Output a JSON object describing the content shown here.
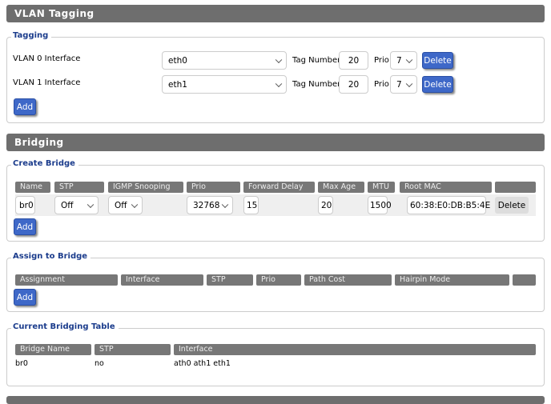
{
  "vlan": {
    "title": "VLAN Tagging",
    "legend": "Tagging",
    "rows": [
      {
        "label": "VLAN 0 Interface",
        "interface": "eth0",
        "tag_label": "Tag Number",
        "tag": "20",
        "prio_label": "Prio",
        "prio": "7",
        "delete": "Delete"
      },
      {
        "label": "VLAN 1 Interface",
        "interface": "eth1",
        "tag_label": "Tag Number",
        "tag": "20",
        "prio_label": "Prio",
        "prio": "7",
        "delete": "Delete"
      }
    ],
    "add": "Add"
  },
  "bridging": {
    "title": "Bridging",
    "create": {
      "legend": "Create Bridge",
      "headers": [
        "Name",
        "STP",
        "IGMP Snooping",
        "Prio",
        "Forward Delay",
        "Max Age",
        "MTU",
        "Root MAC",
        ""
      ],
      "row": {
        "name": "br0",
        "stp": "Off",
        "igmp": "Off",
        "prio": "32768",
        "forward_delay": "15",
        "max_age": "20",
        "mtu": "1500",
        "root_mac": "60:38:E0:DB:B5:4E",
        "delete": "Delete"
      },
      "add": "Add"
    },
    "assign": {
      "legend": "Assign to Bridge",
      "headers": [
        "Assignment",
        "Interface",
        "STP",
        "Prio",
        "Path Cost",
        "Hairpin Mode",
        ""
      ],
      "add": "Add"
    },
    "table": {
      "legend": "Current Bridging Table",
      "headers": [
        "Bridge Name",
        "STP",
        "Interface"
      ],
      "rows": [
        [
          "br0",
          "no",
          "ath0 ath1 eth1"
        ]
      ]
    }
  },
  "colors": {
    "header_bar": "#6e6e6e",
    "legend": "#1b3c8c",
    "button": "#3e68c8"
  }
}
